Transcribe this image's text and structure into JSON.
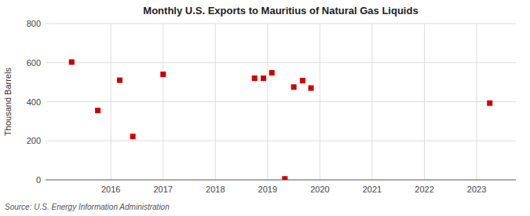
{
  "chart_data": {
    "type": "scatter",
    "title": "Monthly U.S. Exports to Mauritius of Natural Gas Liquids",
    "ylabel": "Thousand Barrels",
    "source": "Source: U.S. Energy Information Administration",
    "x": [
      2015.25,
      2015.75,
      2016.17,
      2016.42,
      2017.0,
      2018.75,
      2018.92,
      2019.08,
      2019.33,
      2019.5,
      2019.67,
      2019.83,
      2023.25
    ],
    "values": [
      603,
      355,
      510,
      222,
      540,
      520,
      520,
      548,
      5,
      475,
      508,
      470,
      393
    ],
    "color": "#cc0000",
    "marker": "square",
    "xlim": [
      2014.75,
      2023.75
    ],
    "xticks": [
      2016,
      2017,
      2018,
      2019,
      2020,
      2021,
      2022,
      2023
    ],
    "ylim": [
      0,
      800
    ],
    "yticks": [
      0,
      200,
      400,
      600,
      800
    ],
    "grid": true
  }
}
